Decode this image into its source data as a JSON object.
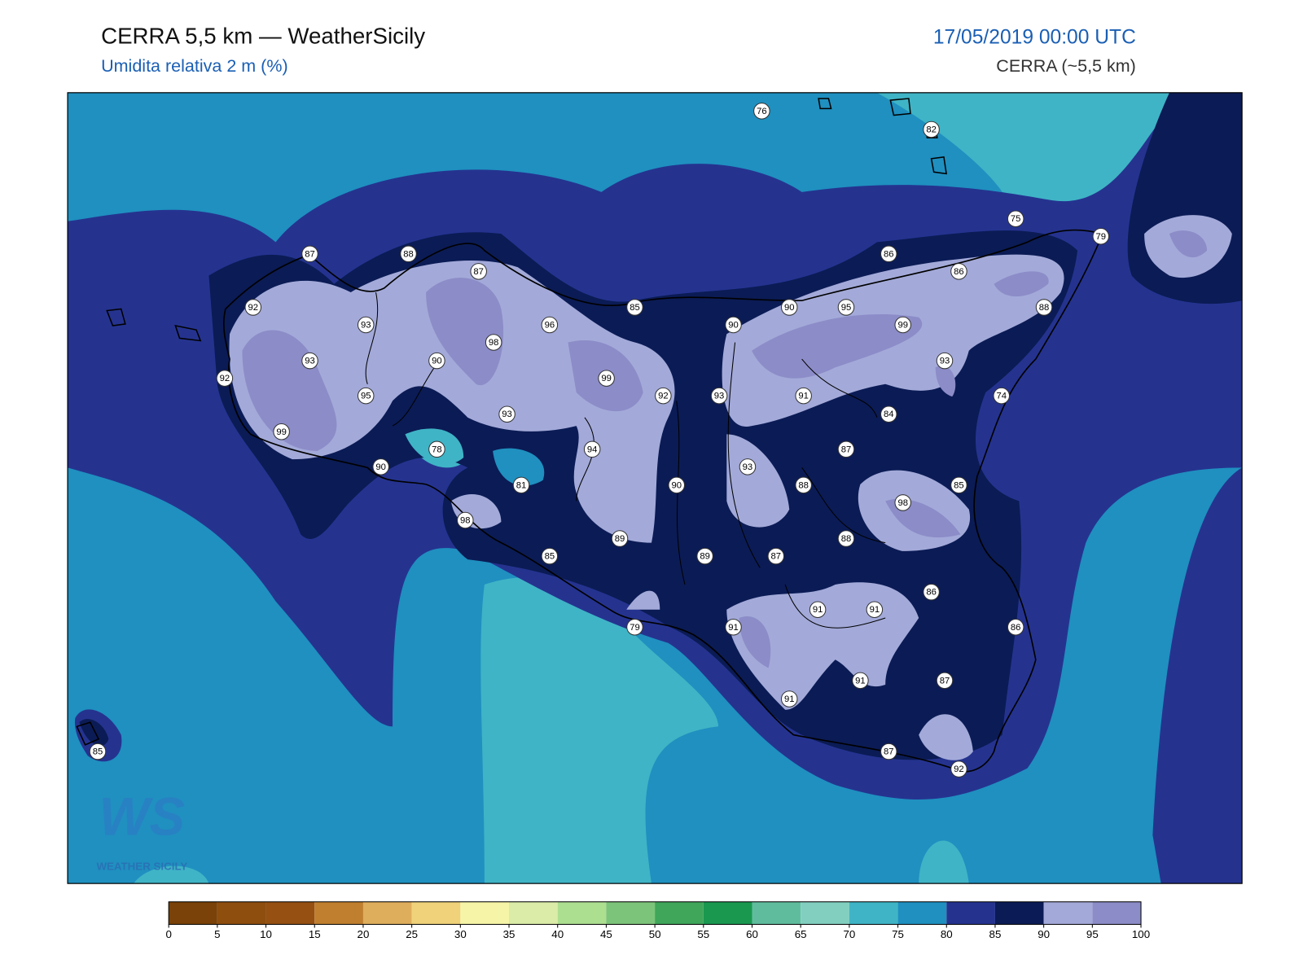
{
  "header": {
    "title": "CERRA 5,5 km — WeatherSicily",
    "subtitle": "Umidita relativa 2 m (%)",
    "datetime": "17/05/2019 00:00 UTC",
    "model": "CERRA (~5,5 km)"
  },
  "stations": [
    76,
    82,
    75,
    79,
    87,
    88,
    87,
    86,
    86,
    92,
    93,
    96,
    85,
    90,
    90,
    95,
    99,
    88,
    93,
    98,
    90,
    93,
    92,
    95,
    99,
    92,
    93,
    91,
    74,
    99,
    93,
    84,
    78,
    94,
    87,
    90,
    81,
    90,
    93,
    88,
    85,
    98,
    98,
    89,
    88,
    85,
    89,
    87,
    86,
    91,
    91,
    79,
    91,
    86,
    91,
    87,
    91,
    87,
    92,
    85
  ],
  "logo": {
    "mark": "WS",
    "text": "WEATHER SICILY"
  },
  "colorbar": {
    "ticks": [
      0,
      5,
      10,
      15,
      20,
      25,
      30,
      35,
      40,
      45,
      50,
      55,
      60,
      65,
      70,
      75,
      80,
      85,
      90,
      95,
      100
    ],
    "colors": [
      "#7a4208",
      "#8e4e0e",
      "#955012",
      "#bf7f2e",
      "#dfae5c",
      "#efd27a",
      "#f6f5a7",
      "#daeca8",
      "#addf91",
      "#7cc47a",
      "#3fa65a",
      "#1a9850",
      "#5fbd9e",
      "#82cfc0",
      "#3fb4c6",
      "#1f90c0",
      "#25338f",
      "#0b1b55",
      "#a3aad9",
      "#8c8cc8"
    ]
  }
}
